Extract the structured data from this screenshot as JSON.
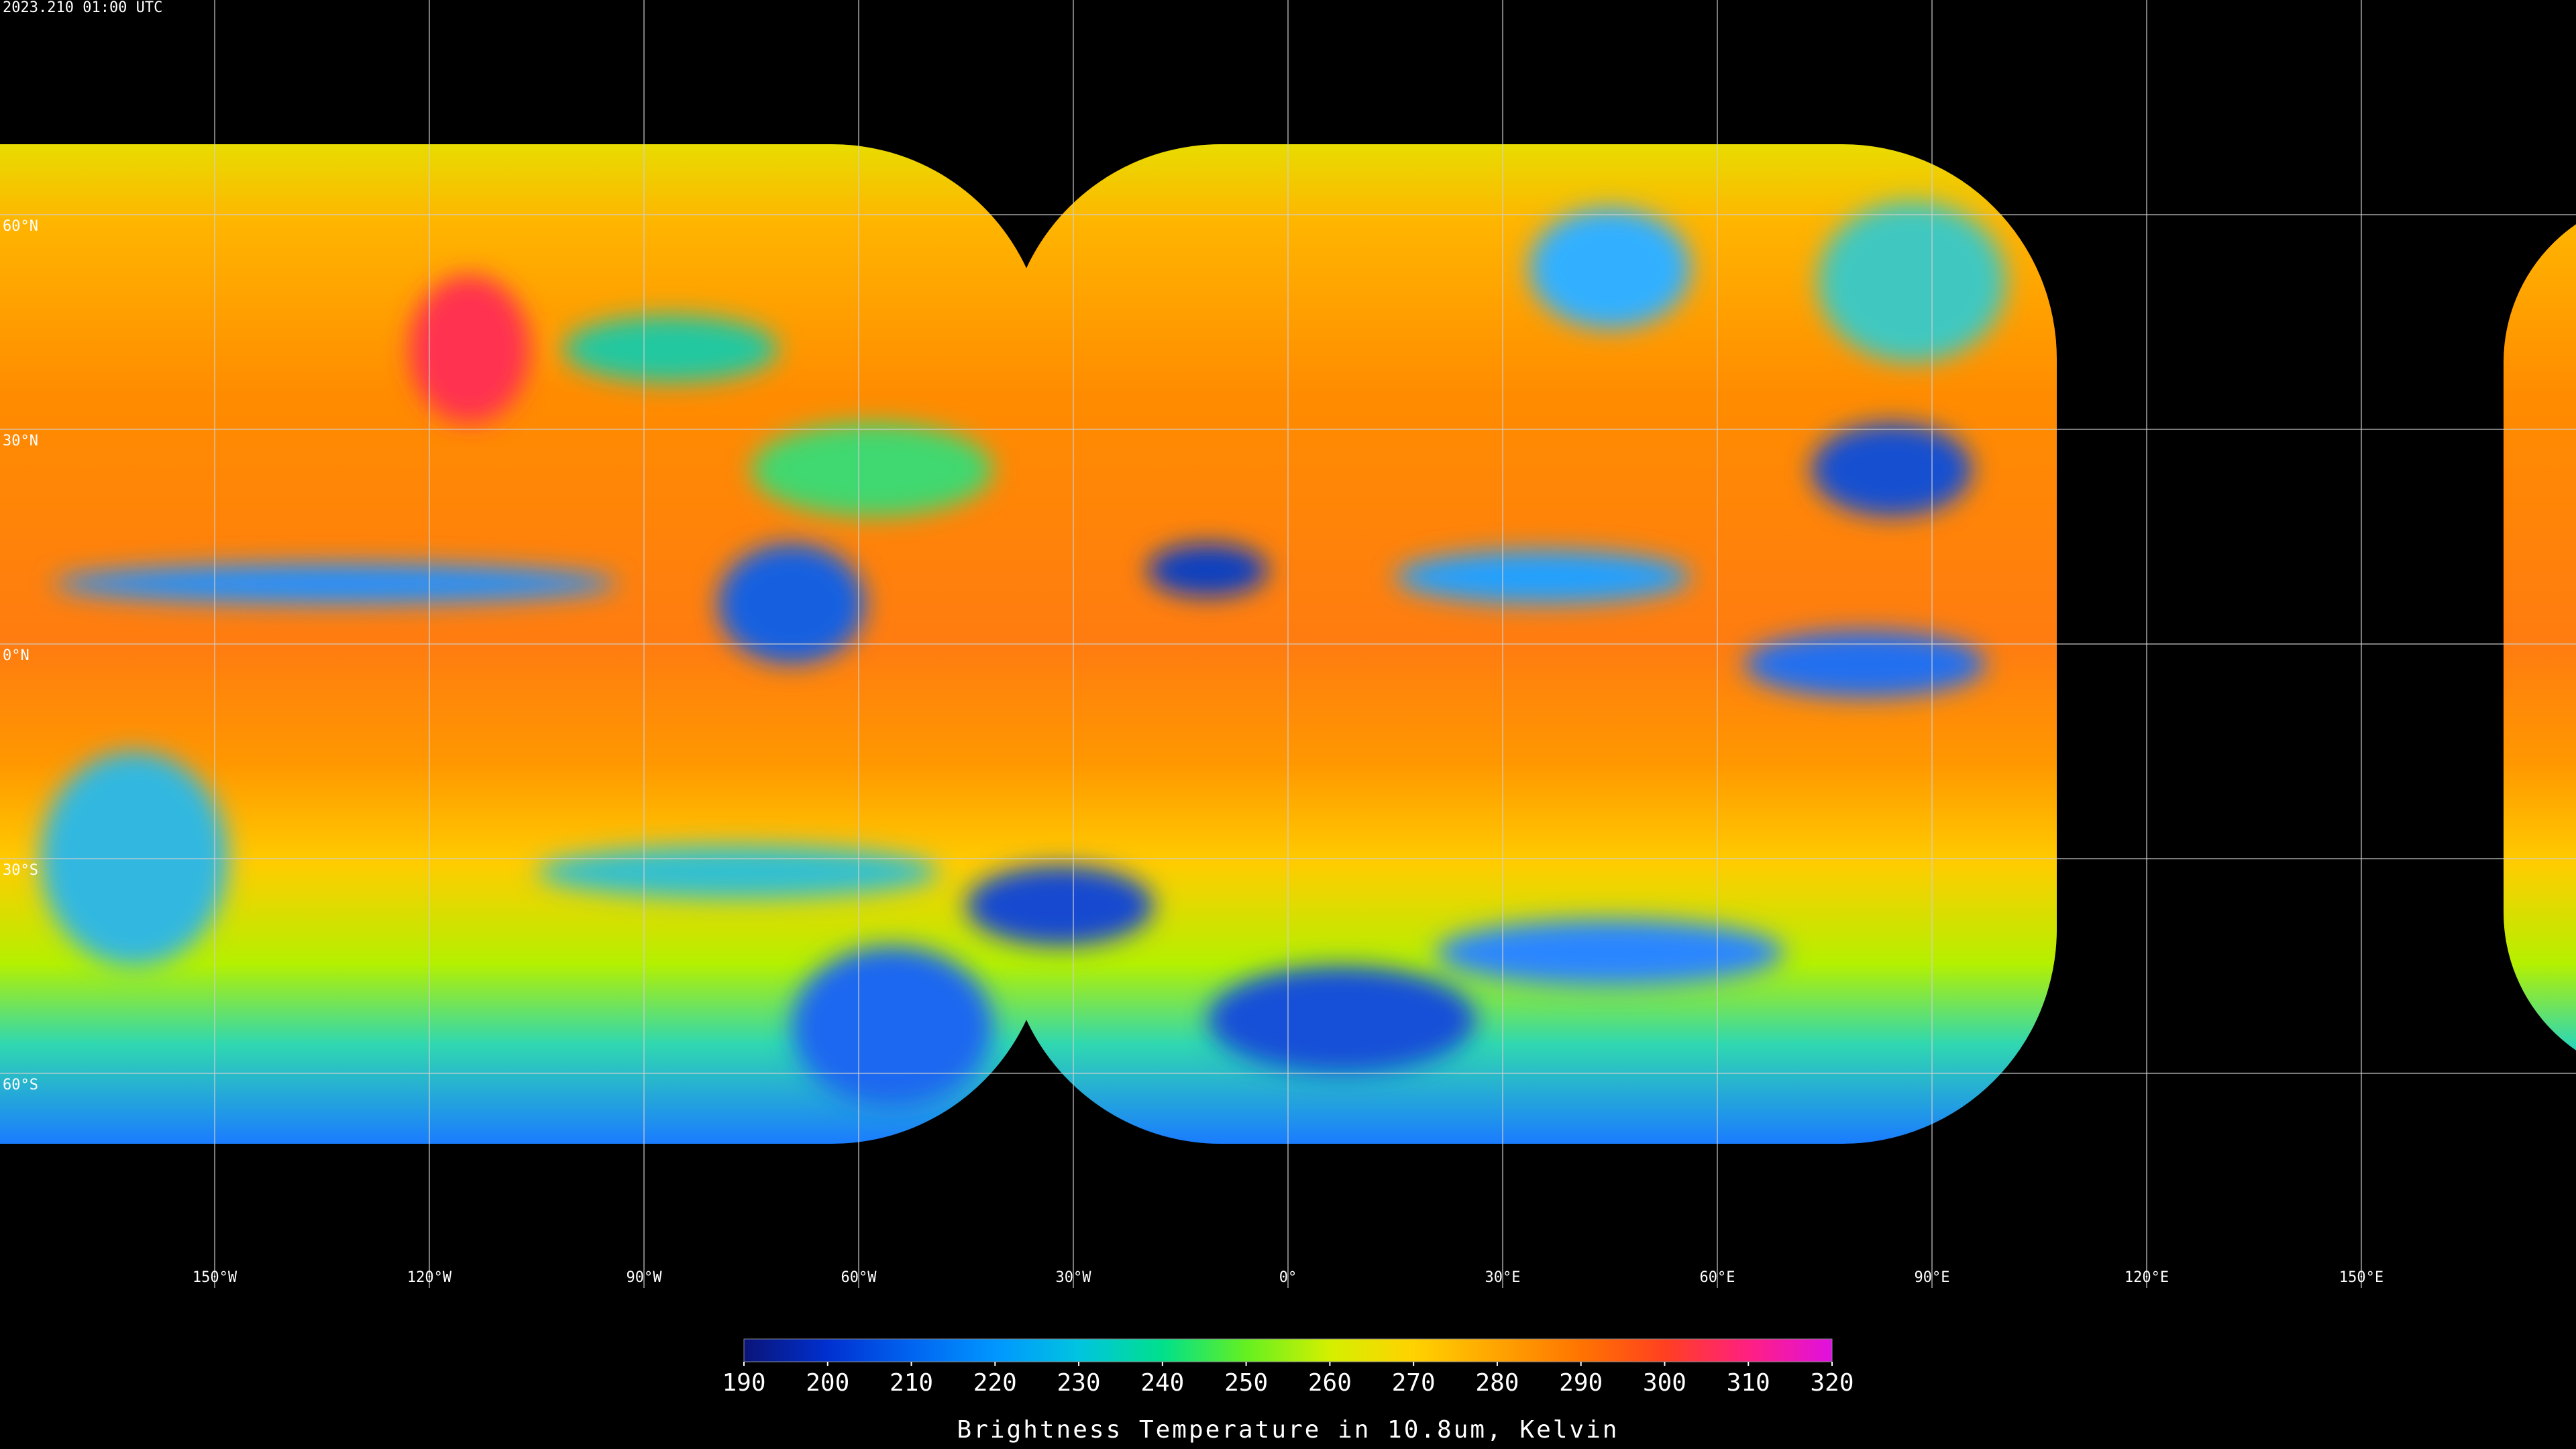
{
  "header": {
    "timestamp": "2023.210 01:00 UTC"
  },
  "map": {
    "lat_labels": [
      "60°N",
      "30°N",
      "0°N",
      "30°S",
      "60°S"
    ],
    "lon_labels": [
      "150°W",
      "120°W",
      "90°W",
      "60°W",
      "30°W",
      "0°",
      "30°E",
      "60°E",
      "90°E",
      "120°E",
      "150°E"
    ]
  },
  "colorbar": {
    "label": "Brightness Temperature in 10.8um, Kelvin",
    "range": [
      190,
      320
    ],
    "ticks": [
      190,
      200,
      210,
      220,
      230,
      240,
      250,
      260,
      270,
      280,
      290,
      300,
      310,
      320
    ],
    "colors": [
      "#0a1478",
      "#0030d0",
      "#0064f0",
      "#0096ff",
      "#00c4e0",
      "#00e08c",
      "#64f020",
      "#d4f000",
      "#ffd200",
      "#ffa400",
      "#ff7400",
      "#ff4020",
      "#ff2080",
      "#e010e0"
    ]
  }
}
